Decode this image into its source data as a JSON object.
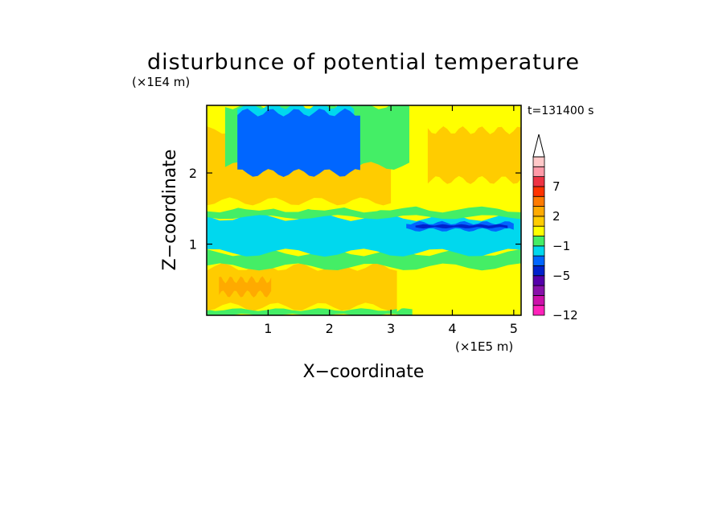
{
  "chart_data": {
    "type": "heatmap",
    "title": "disturbunce of potential temperature",
    "xlabel": "X−coordinate",
    "ylabel": "Z−coordinate",
    "x_scale_label": "(×1E5 m)",
    "y_scale_label": "(×1E4 m)",
    "time_label": "t=131400 s",
    "xlim": [
      0,
      5.12
    ],
    "ylim": [
      0,
      2.95
    ],
    "x_ticks": [
      1,
      2,
      3,
      4,
      5
    ],
    "y_ticks": [
      1,
      2
    ],
    "colorbar": {
      "colors": [
        "#ff22bb",
        "#cc11aa",
        "#8811aa",
        "#5500aa",
        "#0022cc",
        "#0066ff",
        "#00d8ee",
        "#44ee66",
        "#ffff00",
        "#ffcc00",
        "#ffaa00",
        "#ff7a00",
        "#ff3300",
        "#ee3344",
        "#ff9aa8",
        "#ffc8c8"
      ],
      "tick_labels": [
        {
          "label": "−12",
          "index": 0
        },
        {
          "label": "−5",
          "index": 4
        },
        {
          "label": "−1",
          "index": 7
        },
        {
          "label": "2",
          "index": 10
        },
        {
          "label": "7",
          "index": 13
        }
      ],
      "extend": "max"
    },
    "layers": [
      {
        "name": "band1",
        "level": 7,
        "x0": 0.0,
        "x1": 3.35,
        "z0": 0.0,
        "z1": 0.08
      },
      {
        "name": "band2",
        "level": 8,
        "x0": 3.35,
        "x1": 5.12,
        "z0": 0.02,
        "z1": 0.1
      },
      {
        "name": "lower-warm",
        "level": 9,
        "x0": 0.0,
        "x1": 3.1,
        "z0": 0.12,
        "z1": 0.68
      },
      {
        "name": "lower-yellow-east",
        "level": 8,
        "x0": 3.1,
        "x1": 5.12,
        "z0": 0.1,
        "z1": 0.62
      },
      {
        "name": "warm-core",
        "level": 10,
        "x0": 0.2,
        "x1": 1.05,
        "z0": 0.3,
        "z1": 0.5
      },
      {
        "name": "green-mid",
        "level": 7,
        "x0": 0.0,
        "x1": 5.12,
        "z0": 0.68,
        "z1": 0.88
      },
      {
        "name": "cyan-layer",
        "level": 6,
        "x0": 0.0,
        "x1": 5.12,
        "z0": 0.88,
        "z1": 1.38
      },
      {
        "name": "blue-streak",
        "level": 5,
        "x0": 3.25,
        "x1": 5.0,
        "z0": 1.2,
        "z1": 1.3
      },
      {
        "name": "dark-streak",
        "level": 4,
        "x0": 3.4,
        "x1": 4.9,
        "z0": 1.23,
        "z1": 1.27
      },
      {
        "name": "upper-green",
        "level": 7,
        "x0": 0.0,
        "x1": 5.12,
        "z0": 1.38,
        "z1": 1.5
      },
      {
        "name": "upper-yellow",
        "level": 8,
        "x0": 0.0,
        "x1": 5.12,
        "z0": 1.5,
        "z1": 2.95
      },
      {
        "name": "upper-warm-west",
        "level": 9,
        "x0": 0.0,
        "x1": 3.0,
        "z0": 1.6,
        "z1": 2.6
      },
      {
        "name": "upper-warm-east",
        "level": 9,
        "x0": 3.6,
        "x1": 5.12,
        "z0": 1.9,
        "z1": 2.6
      },
      {
        "name": "upper-green-wave",
        "level": 7,
        "x0": 0.3,
        "x1": 3.3,
        "z0": 2.1,
        "z1": 2.95
      },
      {
        "name": "upper-cyan-spots",
        "level": 6,
        "x0": 0.5,
        "x1": 2.4,
        "z0": 2.3,
        "z1": 2.95
      },
      {
        "name": "upper-blue-spots",
        "level": 5,
        "x0": 0.5,
        "x1": 2.5,
        "z0": 2.0,
        "z1": 2.85
      }
    ]
  }
}
